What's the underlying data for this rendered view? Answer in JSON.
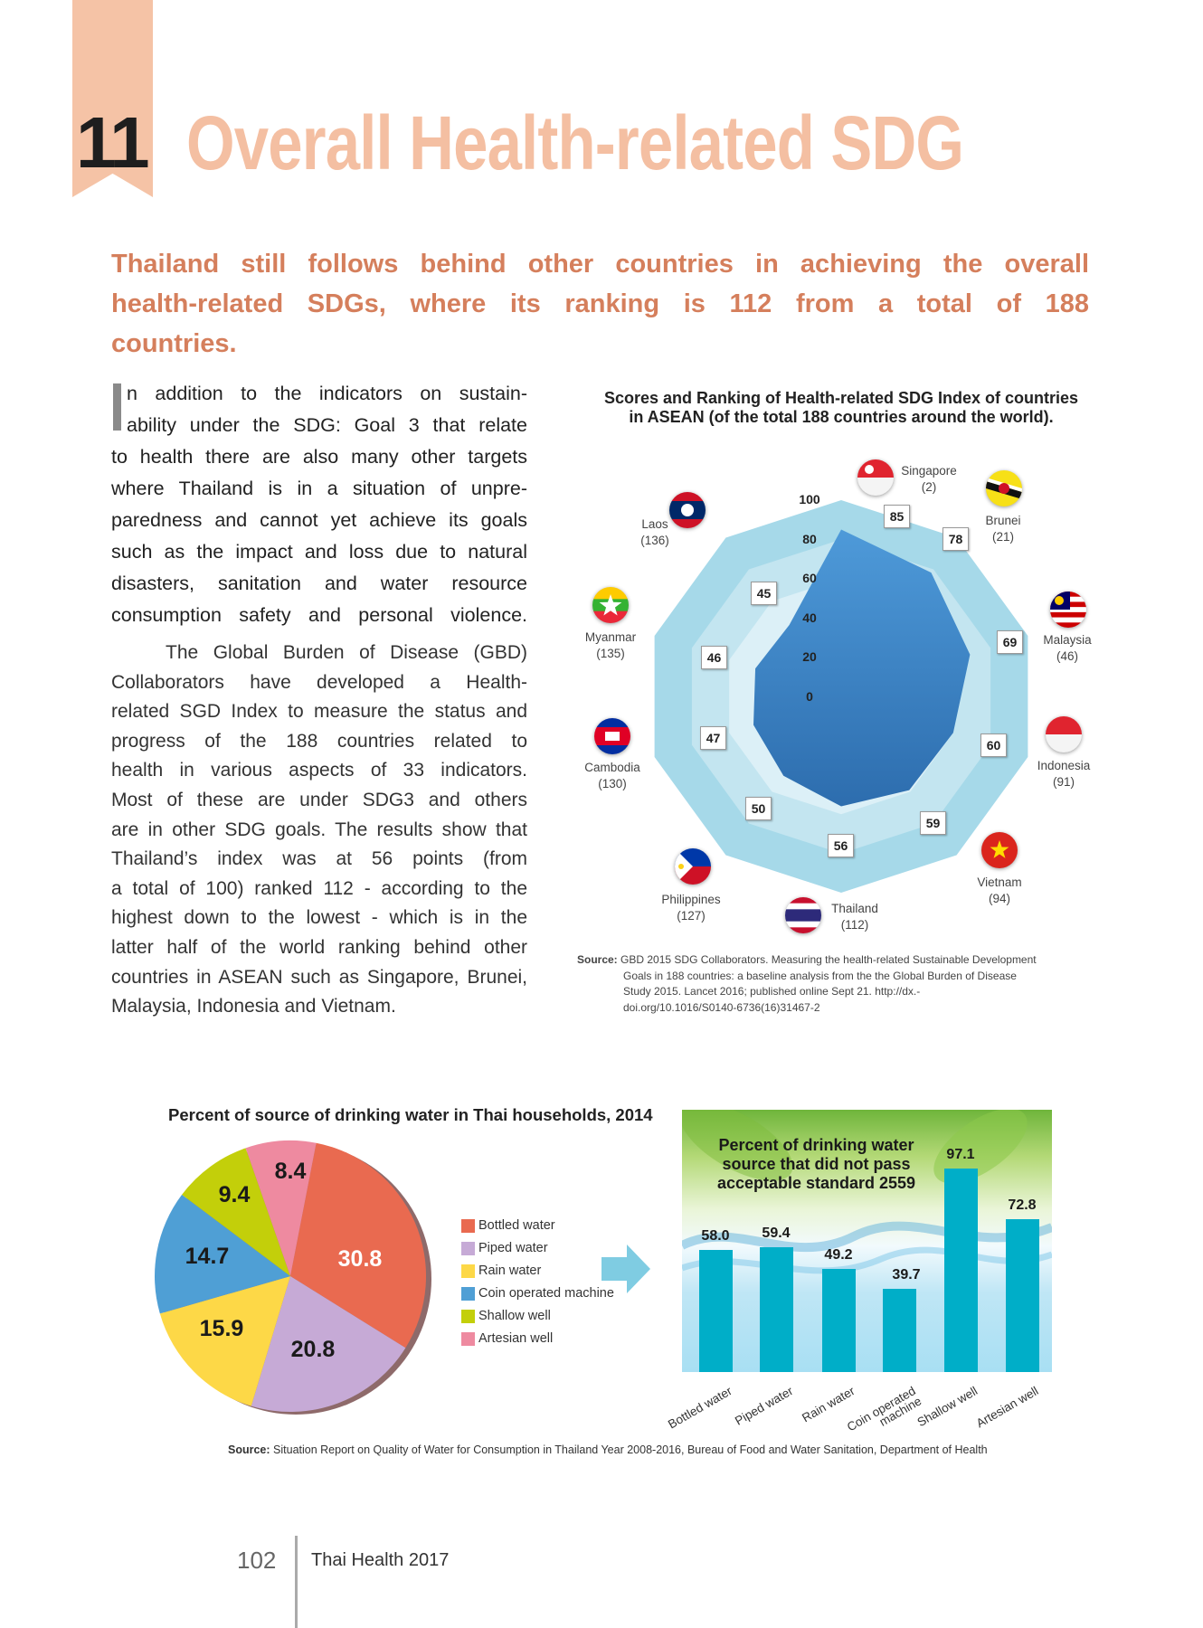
{
  "header": {
    "chapter_number": "11",
    "title": "Overall Health-related SDG",
    "subtitle_lines": [
      "Thailand still follows behind other countries in achieving the overall",
      "health-related SDGs, where its ranking is 112 from a total of 188",
      "countries."
    ]
  },
  "body": {
    "drop_cap": "I",
    "paragraph1_lines": [
      "n addition to the indicators on sustain-",
      "ability under the SDG: Goal 3 that relate",
      "to health there are also many other targets",
      "where Thailand is in a  situation of unpre-",
      "paredness and cannot yet achieve its goals",
      "such as the impact and loss due to natural",
      "disasters, sanitation and water resource",
      "consumption safety and personal violence."
    ],
    "paragraph2_lines": [
      "The Global Burden of Disease (GBD)",
      "Collaborators have developed a Health-",
      "related SGD Index to measure the status and",
      "progress of the 188 countries related to",
      "health in various aspects of 33 indicators.",
      "Most of these are under SDG3 and others",
      "are in other SDG goals. The results show that",
      "Thailand’s index was at 56 points (from",
      "a total of 100) ranked 112 - according to the",
      "highest down to the lowest - which is in the",
      "latter half of the world ranking behind other",
      "countries in ASEAN such as Singapore, Brunei,",
      "Malaysia, Indonesia and Vietnam."
    ]
  },
  "chart_data": [
    {
      "type": "radar",
      "title_lines": [
        "Scores and Ranking of Health-related SDG Index of countries",
        "in ASEAN (of the total 188 countries around the world)."
      ],
      "ticks": [
        "100",
        "80",
        "60",
        "40",
        "20",
        "0"
      ],
      "range": [
        0,
        100
      ],
      "rings": [
        100,
        80,
        60
      ],
      "categories": [
        "Singapore",
        "Brunei",
        "Malaysia",
        "Indonesia",
        "Vietnam",
        "Thailand",
        "Philippines",
        "Cambodia",
        "Myanmar",
        "Laos"
      ],
      "ranks": [
        "(2)",
        "(21)",
        "(46)",
        "(91)",
        "(94)",
        "(112)",
        "(127)",
        "(130)",
        "(135)",
        "(136)"
      ],
      "values": [
        85,
        78,
        69,
        60,
        59,
        56,
        50,
        47,
        46,
        45
      ],
      "colors": {
        "fill_top": "#4e9ad9",
        "fill_bottom": "#2d6dae",
        "ring_outer": "#a6d9e9",
        "ring_mid": "#c3e5f0",
        "ring_inner": "#dcf0f7"
      },
      "source_label": "Source:",
      "source_lines": [
        "GBD 2015 SDG Collaborators. Measuring the health-related Sustainable Development",
        "Goals in 188 countries: a baseline analysis from the the Global Burden of Disease",
        "Study 2015. Lancet 2016; published online Sept 21. http://dx.-",
        "doi.org/10.1016/S0140-6736(16)31467-2"
      ]
    },
    {
      "type": "pie",
      "title": "Percent of source of drinking water in Thai households, 2014",
      "categories": [
        "Bottled water",
        "Piped water",
        "Rain water",
        "Coin operated machine",
        "Shallow well",
        "Artesian well"
      ],
      "values": [
        30.8,
        20.8,
        15.9,
        14.7,
        9.4,
        8.4
      ],
      "labels": [
        "30.8",
        "20.8",
        "15.9",
        "14.7",
        "9.4",
        "8.4"
      ],
      "colors": [
        "#e96a50",
        "#c6aad6",
        "#fdd847",
        "#4f9fd5",
        "#c3cf0a",
        "#ee8aa0"
      ],
      "legend_position": "right"
    },
    {
      "type": "bar",
      "title_lines": [
        "Percent of drinking water",
        "source that did not pass",
        "acceptable standard 2559"
      ],
      "categories": [
        "Bottled water",
        "Piped water",
        "Rain water",
        "Coin operated machine",
        "Shallow well",
        "Artesian well"
      ],
      "category_lines": [
        [
          "Bottled water"
        ],
        [
          "Piped water"
        ],
        [
          "Rain water"
        ],
        [
          "Coin operated",
          "machine"
        ],
        [
          "Shallow well"
        ],
        [
          "Artesian well"
        ]
      ],
      "values": [
        58.0,
        59.4,
        49.2,
        39.7,
        97.1,
        72.8
      ],
      "labels": [
        "58.0",
        "59.4",
        "49.2",
        "39.7",
        "97.1",
        "72.8"
      ],
      "bar_color": "#00aec8",
      "ylim": [
        0,
        100
      ]
    }
  ],
  "water_source": {
    "label": "Source:",
    "text": "Situation Report on Quality of Water for Consumption in Thailand Year 2008-2016, Bureau of Food and Water Sanitation, Department of Health"
  },
  "footer": {
    "page_number": "102",
    "publication": "Thai Health 2017"
  }
}
